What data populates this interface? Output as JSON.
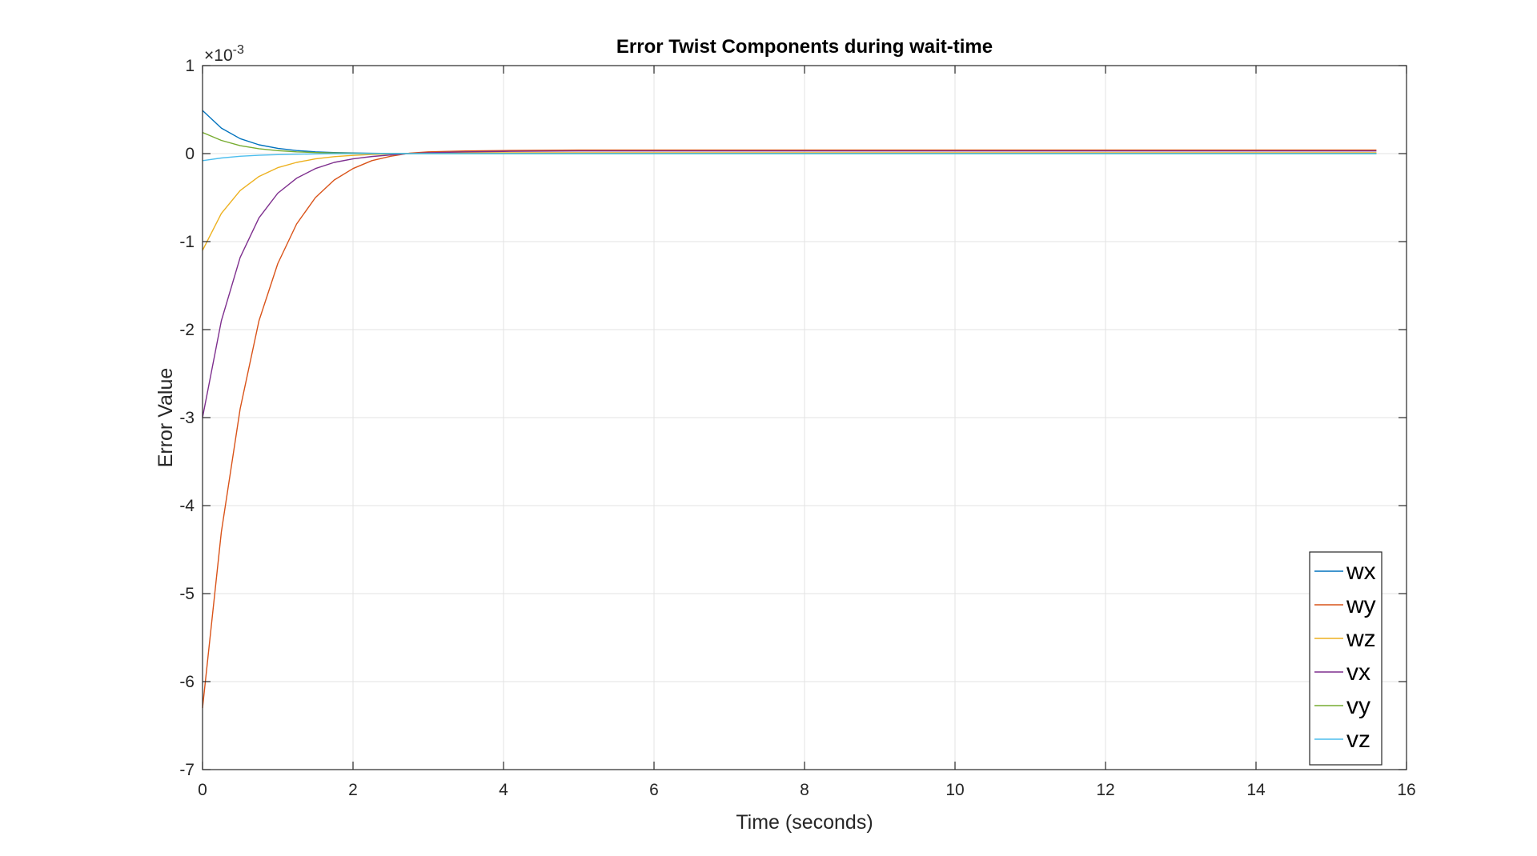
{
  "chart_data": {
    "type": "line",
    "title": "Error Twist Components during wait-time",
    "xlabel": "Time (seconds)",
    "ylabel": "Error Value",
    "y_exponent_prefix": "×10",
    "y_exponent_power": "-3",
    "xlim": [
      0,
      16
    ],
    "ylim": [
      -7,
      1
    ],
    "x_ticks": [
      "0",
      "2",
      "4",
      "6",
      "8",
      "10",
      "12",
      "14",
      "16"
    ],
    "y_ticks": [
      "1",
      "0",
      "-1",
      "-2",
      "-3",
      "-4",
      "-5",
      "-6",
      "-7"
    ],
    "grid": true,
    "legend_position": "bottom-right",
    "x": [
      0,
      0.25,
      0.5,
      0.75,
      1.0,
      1.25,
      1.5,
      1.75,
      2.0,
      2.25,
      2.5,
      2.75,
      3.0,
      3.5,
      4.0,
      5.0,
      6.0,
      7.0,
      8.0,
      9.0,
      10.0,
      11.0,
      12.0,
      13.0,
      14.0,
      15.0,
      15.6
    ],
    "series": [
      {
        "name": "wx",
        "color": "#0072BD",
        "values": [
          0.00049,
          0.00029,
          0.00017,
          0.0001,
          6e-05,
          3.5e-05,
          2e-05,
          1.2e-05,
          7e-06,
          4e-06,
          2e-06,
          1e-06,
          1e-06,
          1e-06,
          1e-06,
          1e-06,
          1e-06,
          1e-06,
          1e-06,
          1e-06,
          1e-06,
          1e-06,
          1e-06,
          1e-06,
          1e-06,
          1e-06,
          1e-06
        ]
      },
      {
        "name": "wy",
        "color": "#D95319",
        "values": [
          -0.0063,
          -0.0043,
          -0.0029,
          -0.0019,
          -0.00125,
          -0.0008,
          -0.0005,
          -0.0003,
          -0.00017,
          -8e-05,
          -3e-05,
          5e-06,
          2e-05,
          3e-05,
          3.5e-05,
          4e-05,
          4e-05,
          4e-05,
          4e-05,
          4e-05,
          4e-05,
          4e-05,
          4e-05,
          4e-05,
          4e-05,
          4e-05,
          4e-05
        ]
      },
      {
        "name": "wz",
        "color": "#EDB120",
        "values": [
          -0.0011,
          -0.00068,
          -0.00042,
          -0.00026,
          -0.00016,
          -0.0001,
          -6e-05,
          -3.5e-05,
          -2e-05,
          -1e-05,
          -5e-06,
          0.0,
          5e-06,
          1e-05,
          1e-05,
          1e-05,
          1e-05,
          1e-05,
          1e-05,
          1e-05,
          1e-05,
          1e-05,
          1e-05,
          1e-05,
          1e-05,
          1e-05,
          1e-05
        ]
      },
      {
        "name": "vx",
        "color": "#7E2F8E",
        "values": [
          -0.003,
          -0.0019,
          -0.00118,
          -0.00073,
          -0.00045,
          -0.00028,
          -0.00017,
          -0.0001,
          -6e-05,
          -3.3e-05,
          -1.5e-05,
          0.0,
          1e-05,
          2e-05,
          2.5e-05,
          3e-05,
          3e-05,
          3e-05,
          3e-05,
          3e-05,
          3e-05,
          3e-05,
          3e-05,
          3e-05,
          3e-05,
          3e-05,
          3e-05
        ]
      },
      {
        "name": "vy",
        "color": "#77AC30",
        "values": [
          0.00024,
          0.00015,
          9e-05,
          5.5e-05,
          3.4e-05,
          2e-05,
          1.2e-05,
          7e-06,
          4e-06,
          2e-06,
          1e-06,
          0.0,
          0.0,
          0.0,
          0.0,
          0.0,
          0.0,
          0.0,
          0.0,
          0.0,
          0.0,
          0.0,
          0.0,
          0.0,
          0.0,
          0.0,
          0.0
        ]
      },
      {
        "name": "vz",
        "color": "#4DBEEE",
        "values": [
          -8e-05,
          -5e-05,
          -3e-05,
          -1.9e-05,
          -1.2e-05,
          -7e-06,
          -4e-06,
          -2e-06,
          -1e-06,
          0.0,
          0.0,
          0.0,
          0.0,
          0.0,
          0.0,
          0.0,
          0.0,
          0.0,
          0.0,
          0.0,
          0.0,
          0.0,
          0.0,
          0.0,
          0.0,
          0.0,
          0.0
        ]
      }
    ]
  }
}
